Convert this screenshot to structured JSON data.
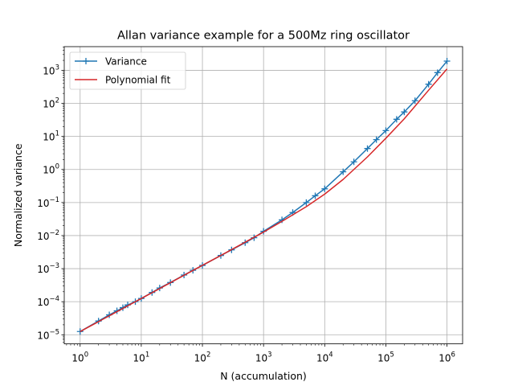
{
  "chart_data": {
    "type": "line",
    "title": "Allan variance example for a 500Mz ring oscillator",
    "xlabel": "N (accumulation)",
    "ylabel": "Normalized variance",
    "xscale": "log",
    "yscale": "log",
    "xlim": [
      0.55,
      1800000
    ],
    "ylim": [
      5.3e-06,
      5200
    ],
    "grid": true,
    "legend_position": "top-left",
    "x_ticks": [
      1,
      10,
      100,
      1000,
      10000,
      100000,
      1000000
    ],
    "x_tick_labels": [
      {
        "base": "10",
        "exp": "0"
      },
      {
        "base": "10",
        "exp": "1"
      },
      {
        "base": "10",
        "exp": "2"
      },
      {
        "base": "10",
        "exp": "3"
      },
      {
        "base": "10",
        "exp": "4"
      },
      {
        "base": "10",
        "exp": "5"
      },
      {
        "base": "10",
        "exp": "6"
      }
    ],
    "y_ticks": [
      1e-05,
      0.0001,
      0.001,
      0.01,
      0.1,
      1,
      10,
      100,
      1000
    ],
    "y_tick_labels": [
      {
        "base": "10",
        "exp": "−5"
      },
      {
        "base": "10",
        "exp": "−4"
      },
      {
        "base": "10",
        "exp": "−3"
      },
      {
        "base": "10",
        "exp": "−2"
      },
      {
        "base": "10",
        "exp": "−1"
      },
      {
        "base": "10",
        "exp": "0"
      },
      {
        "base": "10",
        "exp": "1"
      },
      {
        "base": "10",
        "exp": "2"
      },
      {
        "base": "10",
        "exp": "3"
      }
    ],
    "series": [
      {
        "name": "Variance",
        "color": "#1f77b4",
        "marker": "+",
        "x": [
          1,
          2,
          3,
          4,
          5,
          6,
          8,
          10,
          15,
          20,
          30,
          50,
          70,
          100,
          200,
          300,
          500,
          700,
          1000,
          2000,
          3000,
          5000,
          7000,
          10000,
          20000,
          30000,
          50000,
          70000,
          100000,
          150000,
          200000,
          300000,
          500000,
          700000,
          1000000
        ],
        "y": [
          1.25e-05,
          2.6e-05,
          4e-05,
          5.3e-05,
          6.6e-05,
          8e-05,
          0.0001,
          0.000125,
          0.00019,
          0.00026,
          0.00038,
          0.00064,
          0.00089,
          0.00125,
          0.0025,
          0.0037,
          0.0061,
          0.0086,
          0.0135,
          0.03,
          0.05,
          0.1,
          0.16,
          0.26,
          0.85,
          1.7,
          4.3,
          8,
          15,
          33,
          55,
          120,
          380,
          850,
          1900
        ]
      },
      {
        "name": "Polynomial fit",
        "color": "#d62728",
        "marker": "",
        "x": [
          1,
          2,
          3,
          5,
          10,
          20,
          50,
          100,
          200,
          500,
          1000,
          2000,
          5000,
          10000,
          20000,
          50000,
          100000,
          200000,
          500000,
          1000000
        ],
        "y": [
          1.25e-05,
          2.5e-05,
          3.75e-05,
          6.25e-05,
          0.000125,
          0.00025,
          0.00063,
          0.00126,
          0.0025,
          0.0063,
          0.0128,
          0.027,
          0.075,
          0.18,
          0.5,
          2.4,
          8.8,
          34,
          250,
          1100
        ]
      }
    ]
  }
}
